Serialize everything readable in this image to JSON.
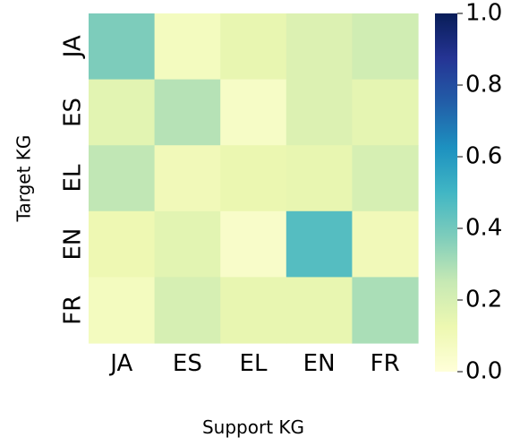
{
  "chart_data": {
    "type": "heatmap",
    "x_categories": [
      "JA",
      "ES",
      "EL",
      "EN",
      "FR"
    ],
    "y_categories": [
      "JA",
      "ES",
      "EL",
      "EN",
      "FR"
    ],
    "xlabel": "Support KG",
    "ylabel": "Target KG",
    "values": [
      [
        0.38,
        0.08,
        0.14,
        0.18,
        0.22
      ],
      [
        0.16,
        0.28,
        0.06,
        0.18,
        0.15
      ],
      [
        0.26,
        0.1,
        0.13,
        0.14,
        0.2
      ],
      [
        0.12,
        0.16,
        0.05,
        0.46,
        0.1
      ],
      [
        0.08,
        0.2,
        0.14,
        0.14,
        0.3
      ]
    ],
    "colorbar": {
      "min": 0.0,
      "max": 1.0,
      "ticks": [
        "0.0",
        "0.2",
        "0.4",
        "0.6",
        "0.8",
        "1.0"
      ],
      "colormap": "YlGnBu"
    }
  }
}
